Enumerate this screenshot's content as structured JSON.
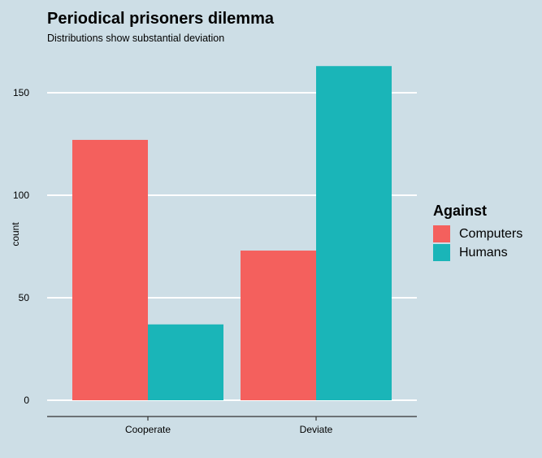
{
  "chart_data": {
    "type": "bar",
    "title": "Periodical prisoners dilemma",
    "subtitle": "Distributions show substantial deviation",
    "xlabel": "",
    "ylabel": "count",
    "categories": [
      "Cooperate",
      "Deviate"
    ],
    "series": [
      {
        "name": "Computers",
        "color": "#f4605d",
        "values": [
          127,
          73
        ]
      },
      {
        "name": "Humans",
        "color": "#1ab5b8",
        "values": [
          37,
          163
        ]
      }
    ],
    "ylim": [
      0,
      163
    ],
    "yticks": [
      0,
      50,
      100,
      150
    ],
    "grid": true,
    "legend": {
      "title": "Against",
      "position": "right"
    },
    "colors": {
      "background": "#cddee6",
      "grid": "#ffffff",
      "axis": "#333333"
    }
  }
}
